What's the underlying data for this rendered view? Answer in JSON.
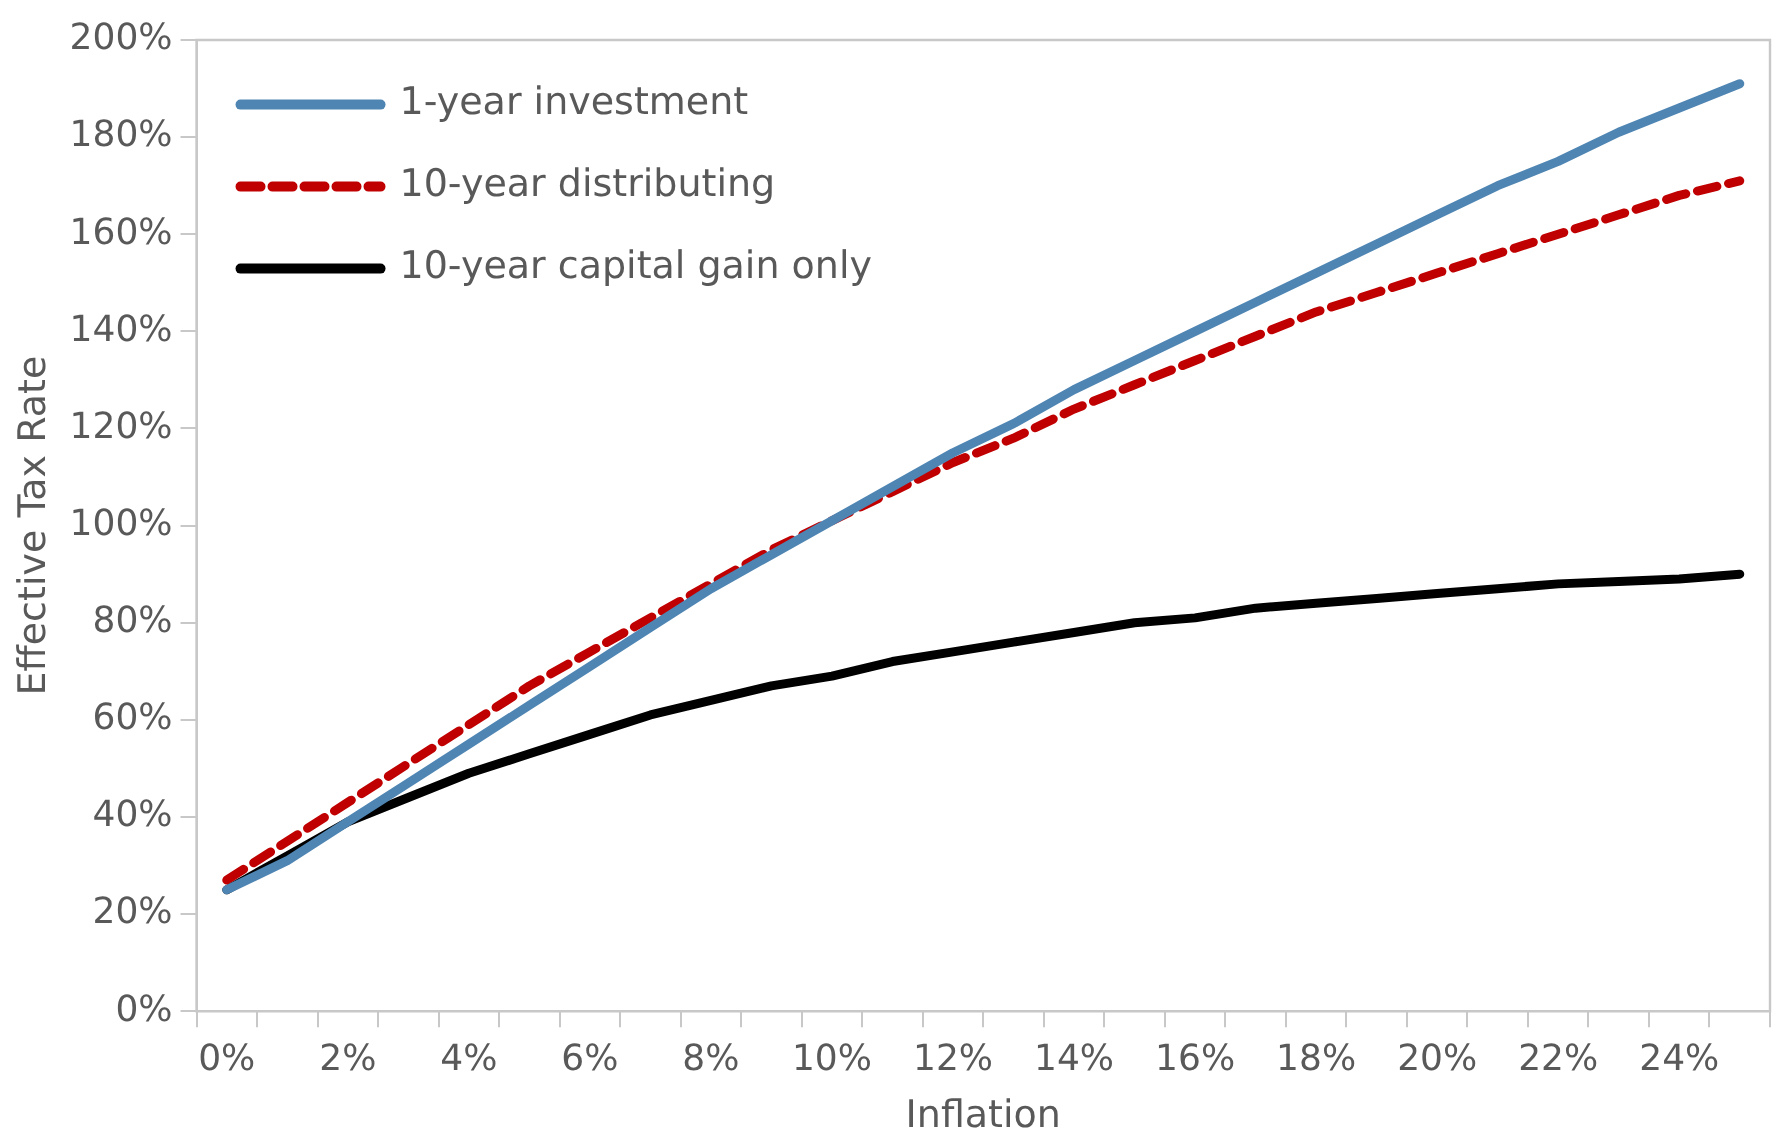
{
  "chart_data": {
    "type": "line",
    "xlabel": "Inflation",
    "ylabel": "Effective Tax Rate",
    "categories": [
      "0%",
      null,
      "2%",
      null,
      "4%",
      null,
      "6%",
      null,
      "8%",
      null,
      "10%",
      null,
      "12%",
      null,
      "14%",
      null,
      "16%",
      null,
      "18%",
      null,
      "20%",
      null,
      "22%",
      null,
      "24%",
      null
    ],
    "series": [
      {
        "name": "1-year investment",
        "color": "#4e85b3",
        "line_style": "solid",
        "values": [
          25,
          31,
          39,
          47,
          55,
          63,
          71,
          79,
          87,
          94,
          101,
          108,
          115,
          121,
          128,
          134,
          140,
          146,
          152,
          158,
          164,
          170,
          175,
          181,
          186,
          191
        ]
      },
      {
        "name": "10-year distributing",
        "color": "#c00000",
        "line_style": "dashed",
        "values": [
          27,
          35,
          43,
          51,
          59,
          67,
          74,
          81,
          88,
          95,
          101,
          107,
          113,
          118,
          124,
          129,
          134,
          139,
          144,
          148,
          152,
          156,
          160,
          164,
          168,
          171
        ]
      },
      {
        "name": "10-year capital gain only",
        "color": "#000000",
        "line_style": "solid",
        "values": [
          25,
          32,
          39,
          44,
          49,
          53,
          57,
          61,
          64,
          67,
          69,
          72,
          74,
          76,
          78,
          80,
          81,
          83,
          84,
          85,
          86,
          87,
          88,
          88.5,
          89,
          90
        ]
      }
    ],
    "ylim": [
      0,
      200
    ],
    "yticks": [
      {
        "value": 0,
        "label": "0%"
      },
      {
        "value": 20,
        "label": "20%"
      },
      {
        "value": 40,
        "label": "40%"
      },
      {
        "value": 60,
        "label": "60%"
      },
      {
        "value": 80,
        "label": "80%"
      },
      {
        "value": 100,
        "label": "100%"
      },
      {
        "value": 120,
        "label": "120%"
      },
      {
        "value": 140,
        "label": "140%"
      },
      {
        "value": 160,
        "label": "160%"
      },
      {
        "value": 180,
        "label": "180%"
      },
      {
        "value": 200,
        "label": "200%"
      }
    ],
    "grid": false,
    "legend": "top left",
    "marker": "none"
  }
}
